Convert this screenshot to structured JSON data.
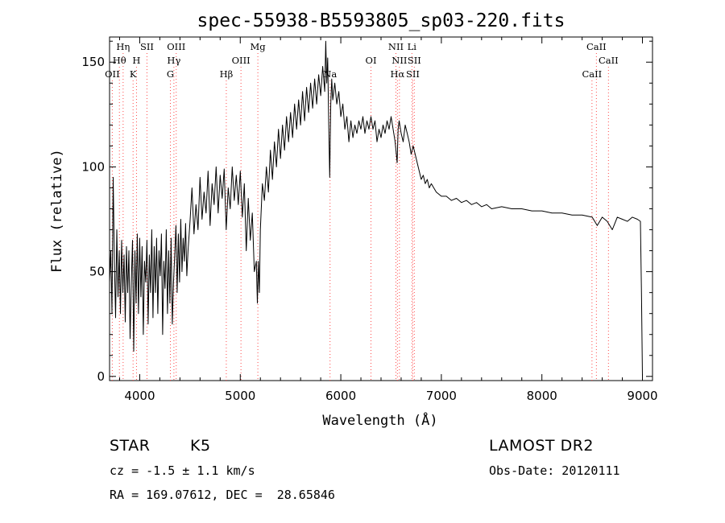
{
  "chart_data": {
    "type": "line",
    "title": "spec-55938-B5593805_sp03-220.fits",
    "xlabel": "Wavelength (Å)",
    "ylabel": "Flux (relative)",
    "xlim": [
      3700,
      9100
    ],
    "ylim": [
      -2,
      162
    ],
    "x_ticks": [
      4000,
      5000,
      6000,
      7000,
      8000,
      9000
    ],
    "y_ticks": [
      0,
      50,
      100,
      150
    ],
    "grid": false,
    "series": [
      {
        "values_xy": [
          [
            3700,
            45
          ],
          [
            3712,
            60
          ],
          [
            3724,
            30
          ],
          [
            3736,
            95
          ],
          [
            3748,
            55
          ],
          [
            3760,
            28
          ],
          [
            3772,
            70
          ],
          [
            3784,
            38
          ],
          [
            3796,
            60
          ],
          [
            3808,
            30
          ],
          [
            3820,
            65
          ],
          [
            3832,
            40
          ],
          [
            3844,
            58
          ],
          [
            3856,
            26
          ],
          [
            3868,
            62
          ],
          [
            3880,
            40
          ],
          [
            3892,
            60
          ],
          [
            3904,
            18
          ],
          [
            3916,
            45
          ],
          [
            3928,
            65
          ],
          [
            3940,
            12
          ],
          [
            3952,
            60
          ],
          [
            3964,
            35
          ],
          [
            3976,
            68
          ],
          [
            3988,
            30
          ],
          [
            4000,
            66
          ],
          [
            4012,
            38
          ],
          [
            4024,
            62
          ],
          [
            4036,
            20
          ],
          [
            4048,
            55
          ],
          [
            4060,
            45
          ],
          [
            4072,
            65
          ],
          [
            4084,
            25
          ],
          [
            4096,
            58
          ],
          [
            4108,
            40
          ],
          [
            4120,
            70
          ],
          [
            4132,
            28
          ],
          [
            4144,
            62
          ],
          [
            4156,
            40
          ],
          [
            4168,
            66
          ],
          [
            4180,
            30
          ],
          [
            4192,
            60
          ],
          [
            4204,
            48
          ],
          [
            4216,
            68
          ],
          [
            4228,
            20
          ],
          [
            4240,
            55
          ],
          [
            4252,
            42
          ],
          [
            4264,
            70
          ],
          [
            4276,
            30
          ],
          [
            4288,
            60
          ],
          [
            4300,
            35
          ],
          [
            4312,
            66
          ],
          [
            4324,
            25
          ],
          [
            4336,
            45
          ],
          [
            4348,
            58
          ],
          [
            4360,
            72
          ],
          [
            4372,
            40
          ],
          [
            4384,
            68
          ],
          [
            4396,
            45
          ],
          [
            4408,
            75
          ],
          [
            4420,
            50
          ],
          [
            4432,
            66
          ],
          [
            4444,
            55
          ],
          [
            4456,
            73
          ],
          [
            4468,
            48
          ],
          [
            4480,
            60
          ],
          [
            4500,
            74
          ],
          [
            4520,
            90
          ],
          [
            4540,
            68
          ],
          [
            4560,
            82
          ],
          [
            4580,
            70
          ],
          [
            4600,
            95
          ],
          [
            4620,
            75
          ],
          [
            4640,
            88
          ],
          [
            4660,
            78
          ],
          [
            4680,
            98
          ],
          [
            4700,
            72
          ],
          [
            4720,
            92
          ],
          [
            4740,
            82
          ],
          [
            4760,
            100
          ],
          [
            4780,
            78
          ],
          [
            4800,
            96
          ],
          [
            4820,
            85
          ],
          [
            4840,
            99
          ],
          [
            4860,
            70
          ],
          [
            4880,
            90
          ],
          [
            4900,
            80
          ],
          [
            4920,
            100
          ],
          [
            4940,
            84
          ],
          [
            4960,
            96
          ],
          [
            4980,
            82
          ],
          [
            5000,
            98
          ],
          [
            5020,
            76
          ],
          [
            5040,
            92
          ],
          [
            5060,
            60
          ],
          [
            5080,
            85
          ],
          [
            5100,
            65
          ],
          [
            5120,
            78
          ],
          [
            5140,
            50
          ],
          [
            5160,
            55
          ],
          [
            5170,
            35
          ],
          [
            5180,
            55
          ],
          [
            5190,
            40
          ],
          [
            5200,
            70
          ],
          [
            5220,
            92
          ],
          [
            5240,
            84
          ],
          [
            5260,
            100
          ],
          [
            5280,
            88
          ],
          [
            5300,
            108
          ],
          [
            5320,
            94
          ],
          [
            5340,
            112
          ],
          [
            5360,
            100
          ],
          [
            5380,
            118
          ],
          [
            5400,
            104
          ],
          [
            5420,
            120
          ],
          [
            5440,
            108
          ],
          [
            5460,
            124
          ],
          [
            5480,
            112
          ],
          [
            5500,
            126
          ],
          [
            5520,
            114
          ],
          [
            5540,
            130
          ],
          [
            5560,
            118
          ],
          [
            5580,
            132
          ],
          [
            5600,
            120
          ],
          [
            5620,
            136
          ],
          [
            5640,
            122
          ],
          [
            5660,
            138
          ],
          [
            5680,
            126
          ],
          [
            5700,
            140
          ],
          [
            5720,
            128
          ],
          [
            5740,
            142
          ],
          [
            5760,
            130
          ],
          [
            5780,
            144
          ],
          [
            5800,
            134
          ],
          [
            5820,
            148
          ],
          [
            5840,
            136
          ],
          [
            5850,
            160
          ],
          [
            5860,
            140
          ],
          [
            5870,
            152
          ],
          [
            5880,
            120
          ],
          [
            5890,
            95
          ],
          [
            5900,
            130
          ],
          [
            5910,
            142
          ],
          [
            5920,
            132
          ],
          [
            5940,
            140
          ],
          [
            5960,
            130
          ],
          [
            5980,
            136
          ],
          [
            6000,
            124
          ],
          [
            6020,
            130
          ],
          [
            6040,
            118
          ],
          [
            6060,
            124
          ],
          [
            6080,
            112
          ],
          [
            6100,
            122
          ],
          [
            6120,
            114
          ],
          [
            6140,
            120
          ],
          [
            6160,
            116
          ],
          [
            6180,
            122
          ],
          [
            6200,
            118
          ],
          [
            6220,
            124
          ],
          [
            6240,
            116
          ],
          [
            6260,
            122
          ],
          [
            6280,
            118
          ],
          [
            6300,
            124
          ],
          [
            6320,
            118
          ],
          [
            6340,
            122
          ],
          [
            6360,
            112
          ],
          [
            6380,
            118
          ],
          [
            6400,
            114
          ],
          [
            6420,
            120
          ],
          [
            6440,
            116
          ],
          [
            6460,
            122
          ],
          [
            6480,
            118
          ],
          [
            6500,
            124
          ],
          [
            6520,
            118
          ],
          [
            6540,
            112
          ],
          [
            6560,
            102
          ],
          [
            6570,
            118
          ],
          [
            6580,
            122
          ],
          [
            6600,
            116
          ],
          [
            6620,
            112
          ],
          [
            6640,
            120
          ],
          [
            6660,
            116
          ],
          [
            6680,
            112
          ],
          [
            6700,
            106
          ],
          [
            6720,
            110
          ],
          [
            6740,
            106
          ],
          [
            6760,
            102
          ],
          [
            6780,
            98
          ],
          [
            6800,
            94
          ],
          [
            6820,
            96
          ],
          [
            6840,
            92
          ],
          [
            6860,
            94
          ],
          [
            6880,
            90
          ],
          [
            6900,
            92
          ],
          [
            6950,
            88
          ],
          [
            7000,
            86
          ],
          [
            7050,
            86
          ],
          [
            7100,
            84
          ],
          [
            7150,
            85
          ],
          [
            7200,
            83
          ],
          [
            7250,
            84
          ],
          [
            7300,
            82
          ],
          [
            7350,
            83
          ],
          [
            7400,
            81
          ],
          [
            7450,
            82
          ],
          [
            7500,
            80
          ],
          [
            7600,
            81
          ],
          [
            7700,
            80
          ],
          [
            7800,
            80
          ],
          [
            7900,
            79
          ],
          [
            8000,
            79
          ],
          [
            8100,
            78
          ],
          [
            8200,
            78
          ],
          [
            8300,
            77
          ],
          [
            8400,
            77
          ],
          [
            8500,
            76
          ],
          [
            8550,
            72
          ],
          [
            8600,
            76
          ],
          [
            8650,
            74
          ],
          [
            8700,
            70
          ],
          [
            8750,
            76
          ],
          [
            8800,
            75
          ],
          [
            8850,
            74
          ],
          [
            8900,
            76
          ],
          [
            8950,
            75
          ],
          [
            8980,
            74
          ],
          [
            8990,
            40
          ],
          [
            9000,
            0
          ]
        ]
      }
    ],
    "line_markers": [
      {
        "label": "OII",
        "wl": 3727,
        "row": 3
      },
      {
        "label": "Hθ",
        "wl": 3798,
        "row": 2
      },
      {
        "label": "Hη",
        "wl": 3835,
        "row": 1
      },
      {
        "label": "K",
        "wl": 3934,
        "row": 3
      },
      {
        "label": "H",
        "wl": 3968,
        "row": 2
      },
      {
        "label": "SII",
        "wl": 4072,
        "row": 1
      },
      {
        "label": "G",
        "wl": 4305,
        "row": 3
      },
      {
        "label": "Hγ",
        "wl": 4340,
        "row": 2
      },
      {
        "label": "OIII",
        "wl": 4363,
        "row": 1
      },
      {
        "label": "Hβ",
        "wl": 4861,
        "row": 3
      },
      {
        "label": "OIII",
        "wl": 5007,
        "row": 2
      },
      {
        "label": "Mg",
        "wl": 5175,
        "row": 1
      },
      {
        "label": "Na",
        "wl": 5893,
        "row": 3
      },
      {
        "label": "OI",
        "wl": 6300,
        "row": 2
      },
      {
        "label": "NII",
        "wl": 6548,
        "row": 1
      },
      {
        "label": "Hα",
        "wl": 6563,
        "row": 3
      },
      {
        "label": "NII",
        "wl": 6583,
        "row": 2
      },
      {
        "label": "Li",
        "wl": 6707,
        "row": 1
      },
      {
        "label": "SII",
        "wl": 6716,
        "row": 3
      },
      {
        "label": "SII",
        "wl": 6731,
        "row": 2
      },
      {
        "label": "CaII",
        "wl": 8498,
        "row": 3
      },
      {
        "label": "CaII",
        "wl": 8542,
        "row": 1
      },
      {
        "label": "CaII",
        "wl": 8662,
        "row": 2
      }
    ]
  },
  "info": {
    "class_label": "STAR",
    "subclass": "K5",
    "survey": "LAMOST DR2",
    "velocity": "cz = -1.5 ± 1.1 km/s",
    "obs_date": "Obs-Date: 20120111",
    "coords": "RA = 169.07612, DEC =  28.65846"
  }
}
